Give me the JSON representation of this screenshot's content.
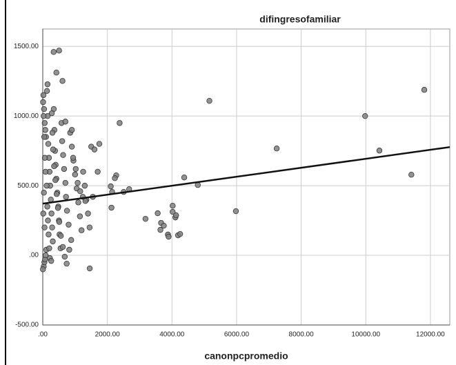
{
  "chart_data": {
    "type": "scatter",
    "title": "difingresofamiliar",
    "x_label": "canonpcpromedio",
    "color": "#7f7f7f",
    "grid": true,
    "x": [
      20,
      40,
      60,
      80,
      100,
      30,
      50,
      70,
      90,
      110,
      130,
      150,
      170,
      190,
      210,
      230,
      250,
      270,
      290,
      310,
      340,
      360,
      380,
      400,
      420,
      450,
      480,
      500,
      520,
      550,
      580,
      600,
      630,
      660,
      700,
      720,
      750,
      800,
      850,
      900,
      950,
      1000,
      1050,
      1100,
      1150,
      1200,
      1250,
      1300,
      1350,
      1400,
      1450,
      1500,
      1550,
      1600,
      1700,
      1750,
      10,
      25,
      45,
      65,
      85,
      120,
      140,
      160,
      180,
      200,
      220,
      260,
      280,
      300,
      320,
      350,
      390,
      430,
      470,
      510,
      560,
      620,
      680,
      740,
      820,
      880,
      940,
      1020,
      1080,
      1160,
      1240,
      1320,
      700,
      900,
      337,
      505,
      421,
      610,
      147,
      5158,
      2379,
      9979,
      11810,
      10421,
      7242,
      11410,
      5979,
      4379,
      4800,
      4021,
      3179,
      3558,
      3663,
      3747,
      3642,
      4021,
      4105,
      4126,
      3874,
      3895,
      4189,
      4253,
      2274,
      2232,
      2105,
      2147,
      2126,
      2505,
      2674,
      1453,
      5,
      15,
      35,
      55
    ],
    "values": [
      1150,
      1050,
      950,
      900,
      850,
      -80,
      -50,
      -30,
      0,
      40,
      1180,
      1000,
      800,
      700,
      600,
      500,
      400,
      300,
      200,
      100,
      1050,
      900,
      750,
      650,
      550,
      450,
      350,
      250,
      150,
      50,
      950,
      820,
      720,
      620,
      520,
      420,
      320,
      220,
      880,
      780,
      680,
      580,
      480,
      380,
      280,
      180,
      600,
      500,
      400,
      300,
      200,
      780,
      420,
      760,
      600,
      800,
      1100,
      1000,
      850,
      700,
      600,
      500,
      350,
      250,
      150,
      50,
      -20,
      -40,
      1020,
      880,
      760,
      640,
      540,
      440,
      340,
      240,
      140,
      60,
      -10,
      -60,
      40,
      110,
      700,
      620,
      520,
      460,
      420,
      390,
      960,
      900,
      1460,
      1470,
      1312,
      1252,
      1228,
      1109,
      950,
      1000,
      1188,
      752,
      767,
      579,
      317,
      559,
      505,
      356,
      262,
      302,
      233,
      213,
      183,
      312,
      272,
      287,
      149,
      134,
      144,
      153,
      574,
      554,
      495,
      455,
      342,
      455,
      475,
      -94,
      -100,
      300,
      450,
      200
    ],
    "fit_line": {
      "color": "#111111",
      "x": [
        0,
        12600
      ],
      "y": [
        371,
        777
      ]
    },
    "xlim": [
      0,
      12600
    ],
    "ylim": [
      -500,
      1625
    ],
    "xticks": [
      {
        "value": 0,
        "label": ".00"
      },
      {
        "value": 2000,
        "label": "2000.00"
      },
      {
        "value": 4000,
        "label": "4000.00"
      },
      {
        "value": 6000,
        "label": "6000.00"
      },
      {
        "value": 8000,
        "label": "8000.00"
      },
      {
        "value": 10000,
        "label": "10000.00"
      },
      {
        "value": 12000,
        "label": "12000.00"
      }
    ],
    "yticks": [
      {
        "value": -500,
        "label": "-500.00"
      },
      {
        "value": 0,
        "label": ".00"
      },
      {
        "value": 500,
        "label": "500.00"
      },
      {
        "value": 1000,
        "label": "1000.00"
      },
      {
        "value": 1500,
        "label": "1500.00"
      }
    ]
  }
}
